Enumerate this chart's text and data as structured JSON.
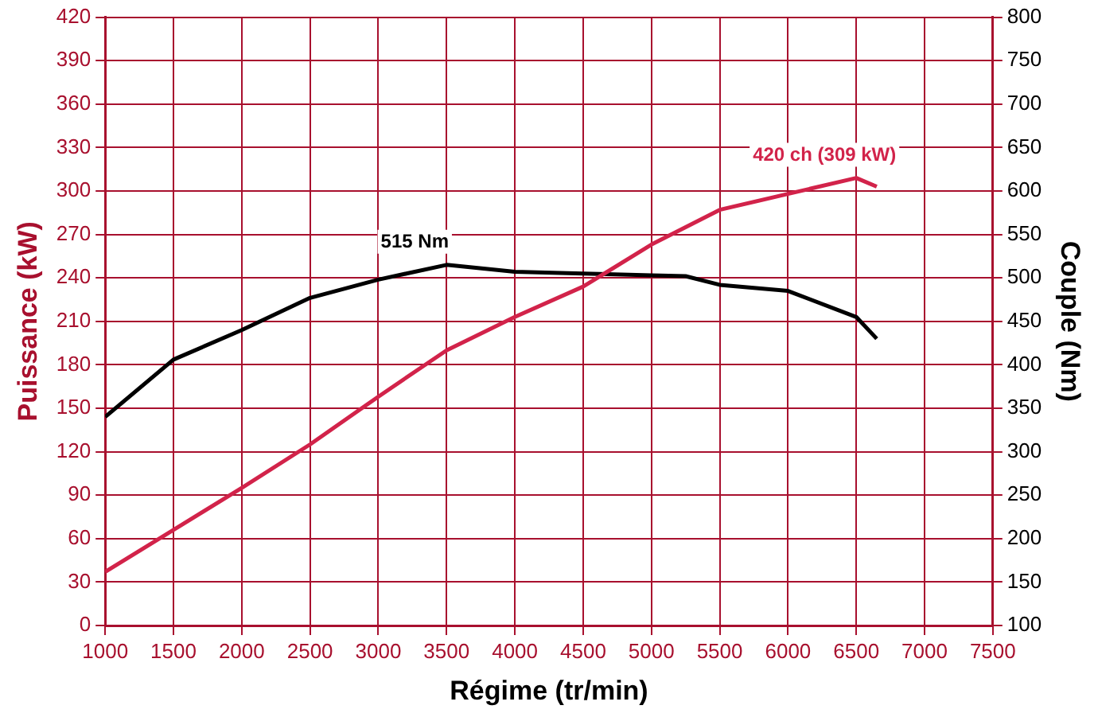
{
  "chart_data": {
    "type": "line",
    "xlabel": "Régime (tr/min)",
    "ylabel": "Puissance (kW)",
    "y2label": "Couple (Nm)",
    "xlim": [
      1000,
      7500
    ],
    "xticks": [
      1000,
      1500,
      2000,
      2500,
      3000,
      3500,
      4000,
      4500,
      5000,
      5500,
      6000,
      6500,
      7000,
      7500
    ],
    "ylim": [
      0,
      420
    ],
    "yticks": [
      0,
      30,
      60,
      90,
      120,
      150,
      180,
      210,
      240,
      270,
      300,
      330,
      360,
      390,
      420
    ],
    "y2lim": [
      100,
      800
    ],
    "y2ticks": [
      100,
      150,
      200,
      250,
      300,
      350,
      400,
      450,
      500,
      550,
      600,
      650,
      700,
      750,
      800
    ],
    "grid": true,
    "legend": false,
    "marker": "none",
    "line_style": "solid",
    "series": [
      {
        "color": "#d2234a",
        "x": [
          1000,
          1500,
          2000,
          2500,
          3000,
          3500,
          4000,
          4500,
          5000,
          5500,
          6000,
          6500,
          6650
        ],
        "values": [
          37,
          66,
          95,
          125,
          158,
          190,
          213,
          234,
          263,
          287,
          298,
          309,
          303
        ]
      },
      {
        "axis": "y2",
        "color": "#000000",
        "x": [
          1000,
          1500,
          2000,
          2500,
          3000,
          3500,
          4000,
          4500,
          5000,
          5250,
          5500,
          6000,
          6500,
          6650
        ],
        "values": [
          340,
          406,
          440,
          477,
          498,
          515,
          507,
          505,
          503,
          502,
          492,
          485,
          455,
          430
        ]
      }
    ],
    "annotations": [
      {
        "text": "420 ch (309 kW)",
        "x": 6500,
        "y": 309
      },
      {
        "text": "515 Nm",
        "x": 3500,
        "y": 249
      }
    ]
  }
}
